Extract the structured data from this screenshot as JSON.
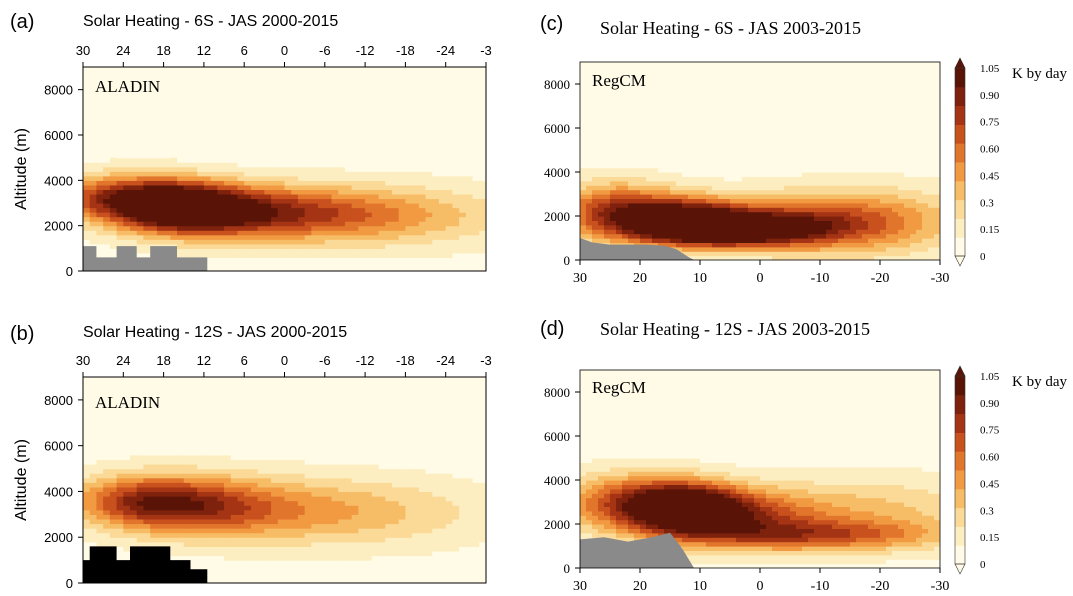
{
  "colors": {
    "scale": [
      "#fffbe6",
      "#fdeec2",
      "#fbd996",
      "#f7bd66",
      "#f19a42",
      "#e2752c",
      "#c9511e",
      "#a53415",
      "#7e220d",
      "#5a1407"
    ],
    "terrain_gray": "#8a8a8a",
    "terrain_black": "#000000"
  },
  "chart_data": [
    {
      "id": "a",
      "type": "heatmap",
      "panel_label": "(a)",
      "title": "Solar Heating - 6S - JAS 2000-2015",
      "model_label": "ALADIN",
      "ylabel": "Altitude (m)",
      "xlim": [
        30,
        -30
      ],
      "ylim": [
        0,
        9000
      ],
      "x_ticks": [
        "30",
        "24",
        "18",
        "12",
        "6",
        "0",
        "-6",
        "-12",
        "-18",
        "-24",
        "-3"
      ],
      "y_ticks": [
        "0",
        "2000",
        "4000",
        "6000",
        "8000"
      ],
      "x_axis_position": "top",
      "terrain_style": "gray",
      "terrain": [
        [
          30,
          1100
        ],
        [
          28,
          1100
        ],
        [
          28,
          600
        ],
        [
          25,
          600
        ],
        [
          25,
          1100
        ],
        [
          22,
          1100
        ],
        [
          22,
          600
        ],
        [
          20,
          600
        ],
        [
          20,
          1100
        ],
        [
          16,
          1100
        ],
        [
          16,
          600
        ],
        [
          11.5,
          600
        ],
        [
          11.5,
          0
        ]
      ],
      "blobs": [
        {
          "x": 24,
          "z": 3300,
          "sx": 8,
          "sz": 700,
          "v": 0.7
        },
        {
          "x": 15,
          "z": 2800,
          "sx": 7,
          "sz": 750,
          "v": 0.95
        },
        {
          "x": 6,
          "z": 2600,
          "sx": 12,
          "sz": 800,
          "v": 0.6
        },
        {
          "x": -8,
          "z": 2500,
          "sx": 14,
          "sz": 900,
          "v": 0.35
        },
        {
          "x": -20,
          "z": 2400,
          "sx": 14,
          "sz": 1000,
          "v": 0.15
        }
      ]
    },
    {
      "id": "b",
      "type": "heatmap",
      "panel_label": "(b)",
      "title": "Solar Heating - 12S - JAS 2000-2015",
      "model_label": "ALADIN",
      "ylabel": "Altitude (m)",
      "xlim": [
        30,
        -30
      ],
      "ylim": [
        0,
        9000
      ],
      "x_ticks": [
        "30",
        "24",
        "18",
        "12",
        "6",
        "0",
        "-6",
        "-12",
        "-18",
        "-24",
        "-3"
      ],
      "y_ticks": [
        "0",
        "2000",
        "4000",
        "6000",
        "8000"
      ],
      "x_axis_position": "top",
      "terrain_style": "black",
      "terrain": [
        [
          30,
          1000
        ],
        [
          29,
          1000
        ],
        [
          29,
          1600
        ],
        [
          25,
          1600
        ],
        [
          25,
          1000
        ],
        [
          23,
          1000
        ],
        [
          23,
          1600
        ],
        [
          17,
          1600
        ],
        [
          17,
          1000
        ],
        [
          14,
          1000
        ],
        [
          14,
          600
        ],
        [
          11.5,
          600
        ],
        [
          11.5,
          0
        ]
      ],
      "blobs": [
        {
          "x": 22,
          "z": 3600,
          "sx": 7,
          "sz": 800,
          "v": 0.65
        },
        {
          "x": 12,
          "z": 3400,
          "sx": 8,
          "sz": 900,
          "v": 0.5
        },
        {
          "x": 0,
          "z": 3200,
          "sx": 14,
          "sz": 1000,
          "v": 0.35
        },
        {
          "x": -15,
          "z": 3000,
          "sx": 14,
          "sz": 1100,
          "v": 0.15
        }
      ]
    },
    {
      "id": "c",
      "type": "heatmap",
      "panel_label": "(c)",
      "title": "Solar Heating - 6S - JAS 2003-2015",
      "model_label": "RegCM",
      "ylabel": "",
      "xlim": [
        30,
        -30
      ],
      "ylim": [
        0,
        9000
      ],
      "x_ticks": [
        "30",
        "20",
        "10",
        "0",
        "-10",
        "-20",
        "-30"
      ],
      "y_ticks": [
        "0",
        "2000",
        "4000",
        "6000",
        "8000"
      ],
      "x_axis_position": "bottom",
      "terrain_style": "gray",
      "terrain": [
        [
          30,
          1000
        ],
        [
          28,
          800
        ],
        [
          25,
          700
        ],
        [
          22,
          700
        ],
        [
          19,
          700
        ],
        [
          16,
          650
        ],
        [
          14,
          500
        ],
        [
          12,
          150
        ],
        [
          11,
          0
        ]
      ],
      "blobs": [
        {
          "x": 24,
          "z": 2200,
          "sx": 7,
          "sz": 900,
          "v": 0.8
        },
        {
          "x": 12,
          "z": 1800,
          "sx": 7,
          "sz": 700,
          "v": 1.05
        },
        {
          "x": 4,
          "z": 1400,
          "sx": 9,
          "sz": 500,
          "v": 1.0
        },
        {
          "x": -8,
          "z": 1700,
          "sx": 12,
          "sz": 900,
          "v": 0.6
        },
        {
          "x": -20,
          "z": 1800,
          "sx": 12,
          "sz": 1100,
          "v": 0.3
        }
      ],
      "colorbar": {
        "label": "K by day",
        "ticks": [
          "0",
          "0.15",
          "0.3",
          "0.45",
          "0.60",
          "0.75",
          "0.90",
          "1.05"
        ]
      }
    },
    {
      "id": "d",
      "type": "heatmap",
      "panel_label": "(d)",
      "title": "Solar Heating - 12S - JAS 2003-2015",
      "model_label": "RegCM",
      "ylabel": "",
      "xlim": [
        30,
        -30
      ],
      "ylim": [
        0,
        9000
      ],
      "x_ticks": [
        "30",
        "20",
        "10",
        "0",
        "-10",
        "-20",
        "-30"
      ],
      "y_ticks": [
        "0",
        "2000",
        "4000",
        "6000",
        "8000"
      ],
      "x_axis_position": "bottom",
      "terrain_style": "gray",
      "terrain": [
        [
          30,
          1300
        ],
        [
          26,
          1400
        ],
        [
          22,
          1200
        ],
        [
          18,
          1400
        ],
        [
          15,
          1600
        ],
        [
          13,
          900
        ],
        [
          11,
          0
        ]
      ],
      "blobs": [
        {
          "x": 22,
          "z": 3000,
          "sx": 8,
          "sz": 900,
          "v": 0.7
        },
        {
          "x": 12,
          "z": 2700,
          "sx": 6,
          "sz": 800,
          "v": 1.0
        },
        {
          "x": 4,
          "z": 2400,
          "sx": 10,
          "sz": 900,
          "v": 0.7
        },
        {
          "x": -10,
          "z": 1500,
          "sx": 14,
          "sz": 500,
          "v": 0.55
        },
        {
          "x": -20,
          "z": 2600,
          "sx": 12,
          "sz": 1100,
          "v": 0.3
        }
      ],
      "colorbar": {
        "label": "K by day",
        "ticks": [
          "0",
          "0.15",
          "0.3",
          "0.45",
          "0.60",
          "0.75",
          "0.90",
          "1.05"
        ]
      }
    }
  ]
}
